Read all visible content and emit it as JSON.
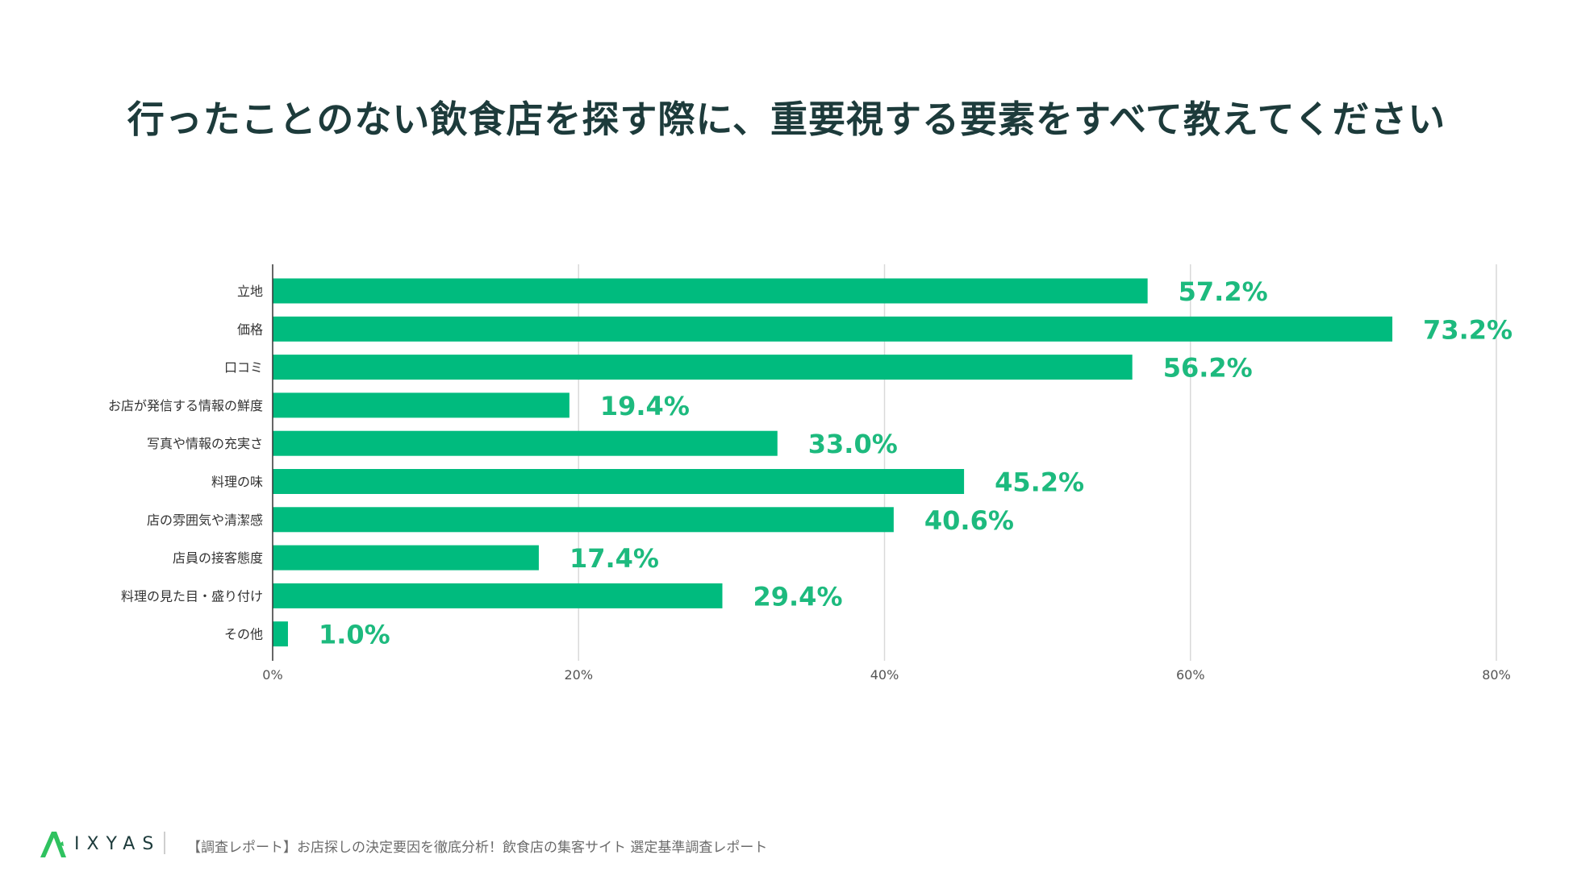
{
  "chart_data": {
    "type": "bar",
    "orientation": "horizontal",
    "title": "行ったことのない飲食店を探す際に、重要視する要素をすべて教えてください",
    "categories": [
      "立地",
      "価格",
      "口コミ",
      "お店が発信する情報の鮮度",
      "写真や情報の充実さ",
      "料理の味",
      "店の雰囲気や清潔感",
      "店員の接客態度",
      "料理の見た目・盛り付け",
      "その他"
    ],
    "values": [
      57.2,
      73.2,
      56.2,
      19.4,
      33.0,
      45.2,
      40.6,
      17.4,
      29.4,
      1.0
    ],
    "value_labels": [
      "57.2%",
      "73.2%",
      "56.2%",
      "19.4%",
      "33.0%",
      "45.2%",
      "40.6%",
      "17.4%",
      "29.4%",
      "1.0%"
    ],
    "xlim": [
      0,
      80
    ],
    "xticks": [
      0,
      20,
      40,
      60,
      80
    ],
    "xtick_labels": [
      "0%",
      "20%",
      "40%",
      "60%",
      "80%"
    ],
    "grid": true,
    "xlabel": "",
    "ylabel": "",
    "bar_color": "#00bb7e",
    "label_color": "#1dba7e"
  },
  "footer": {
    "brand": "IXYAS",
    "caption": "【調査レポート】お店探しの決定要因を徹底分析！飲食店の集客サイト 選定基準調査レポート",
    "logo_color": "#2fc25f"
  }
}
